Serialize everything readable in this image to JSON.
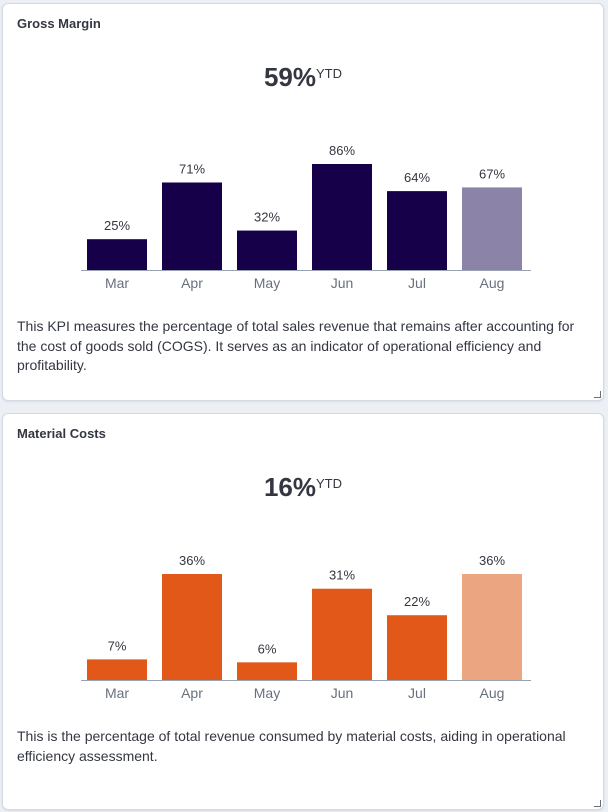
{
  "cards": [
    {
      "title": "Gross Margin",
      "kpi_value": "59%",
      "kpi_suffix": "YTD",
      "description": "This KPI measures the percentage of total sales revenue that remains after accounting for the cost of goods sold (COGS). It serves as an indicator of operational efficiency and profitability.",
      "colors": {
        "bar": "#17004a",
        "bar_highlight": "#8b83a8"
      }
    },
    {
      "title": "Material Costs",
      "kpi_value": "16%",
      "kpi_suffix": "YTD",
      "description": "This is the percentage of total revenue consumed by material costs, aiding in operational efficiency assessment.",
      "colors": {
        "bar": "#e25818",
        "bar_highlight": "#eba581"
      }
    }
  ],
  "chart_data": [
    {
      "type": "bar",
      "title": "Gross Margin",
      "categories": [
        "Mar",
        "Apr",
        "May",
        "Jun",
        "Jul",
        "Aug"
      ],
      "values": [
        25,
        71,
        32,
        86,
        64,
        67
      ],
      "data_labels": [
        "25%",
        "71%",
        "32%",
        "86%",
        "64%",
        "67%"
      ],
      "highlighted_category": "Aug",
      "ylim": [
        0,
        86
      ],
      "grid": false,
      "legend": "none"
    },
    {
      "type": "bar",
      "title": "Material Costs",
      "categories": [
        "Mar",
        "Apr",
        "May",
        "Jun",
        "Jul",
        "Aug"
      ],
      "values": [
        7,
        36,
        6,
        31,
        22,
        36
      ],
      "data_labels": [
        "7%",
        "36%",
        "6%",
        "31%",
        "22%",
        "36%"
      ],
      "highlighted_category": "Aug",
      "ylim": [
        0,
        36
      ],
      "grid": false,
      "legend": "none"
    }
  ]
}
